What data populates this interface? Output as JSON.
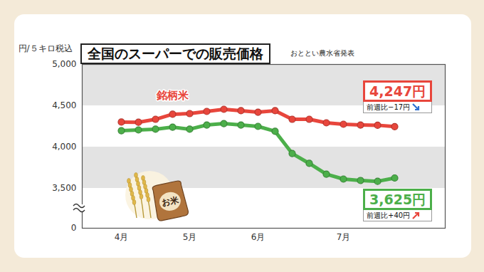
{
  "chart_data": {
    "type": "line",
    "title": "全国のスーパーでの販売価格",
    "subtitle": "おととい農水省発表",
    "y_label": "円/５キロ税込",
    "categories": [
      "4月",
      null,
      null,
      null,
      "5月",
      null,
      null,
      null,
      "6月",
      null,
      null,
      null,
      null,
      "7月",
      null,
      null,
      null
    ],
    "series": [
      {
        "name": "銘柄米",
        "color": "#e8463c",
        "marker": "circle",
        "values": [
          4302,
          4300,
          4336,
          4397,
          4405,
          4431,
          4457,
          4440,
          4422,
          4440,
          4336,
          4336,
          4293,
          4276,
          4267,
          4264,
          4247
        ],
        "annotation": {
          "label": "4,247円",
          "note": "前週比−17円"
        }
      },
      {
        "color": "#4caf4a",
        "marker": "circle",
        "values": [
          4198,
          4207,
          4216,
          4241,
          4216,
          4267,
          4284,
          4267,
          4250,
          4190,
          3922,
          3802,
          3672,
          3612,
          3595,
          3585,
          3625
        ],
        "annotation": {
          "label": "3,625円",
          "note": "前週比+40円"
        }
      }
    ],
    "ylim": [
      0,
      5000
    ],
    "yticks": [
      0,
      {
        "value": 3500,
        "label": "3,500"
      },
      {
        "value": 4000,
        "label": "4,000"
      },
      {
        "value": 4500,
        "label": "4,500"
      },
      {
        "value": 5000,
        "label": "5,000"
      }
    ],
    "grid": true,
    "image_text": "お米"
  }
}
